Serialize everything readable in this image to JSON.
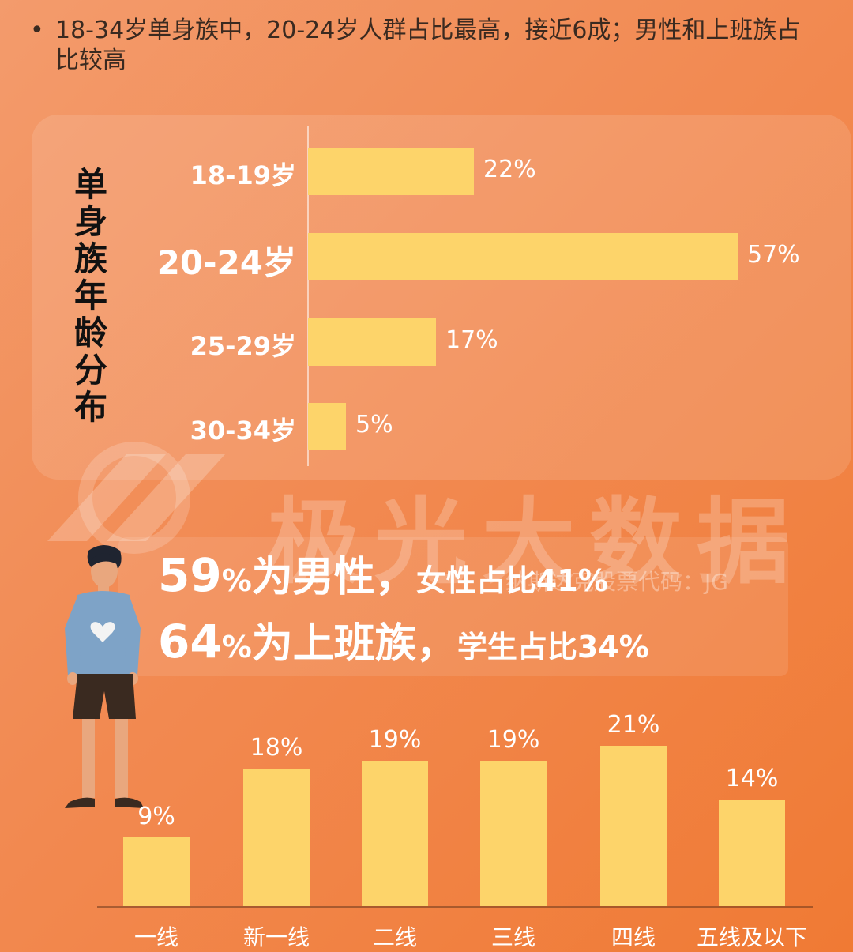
{
  "bullet": {
    "dot": "•",
    "text": "18-34岁单身族中，20-24岁人群占比最高，接近6成；男性和上班族占比较高"
  },
  "watermark": {
    "text": "极光大数据",
    "sub": "纳斯达克股票代码：JG"
  },
  "stats": {
    "male_num": "59",
    "male_pct": "%",
    "male_word": "为男性，",
    "female_text": "女性占比41%",
    "worker_num": "64",
    "worker_pct": "%",
    "worker_word": "为上班族，",
    "student_text": "学生占比34%"
  },
  "colors": {
    "bar": "#fdd46a",
    "bg_start": "#f39b6c",
    "bg_end": "#f07a34",
    "text_light": "#ffffff",
    "text_dark": "#111111"
  },
  "chart_data": [
    {
      "type": "bar",
      "orientation": "horizontal",
      "title": "单身族年龄分布",
      "categories": [
        "18-19岁",
        "20-24岁",
        "25-29岁",
        "30-34岁"
      ],
      "values": [
        22,
        57,
        17,
        5
      ],
      "value_labels": [
        "22%",
        "57%",
        "17%",
        "5%"
      ],
      "highlight_category": "20-24岁",
      "unit": "%",
      "grid": false,
      "legend": "none"
    },
    {
      "type": "bar",
      "orientation": "vertical",
      "categories": [
        "一线",
        "新一线",
        "二线",
        "三线",
        "四线",
        "五线及以下"
      ],
      "values": [
        9,
        18,
        19,
        19,
        21,
        14
      ],
      "value_labels": [
        "9%",
        "18%",
        "19%",
        "19%",
        "21%",
        "14%"
      ],
      "unit": "%",
      "grid": false,
      "legend": "none"
    }
  ]
}
